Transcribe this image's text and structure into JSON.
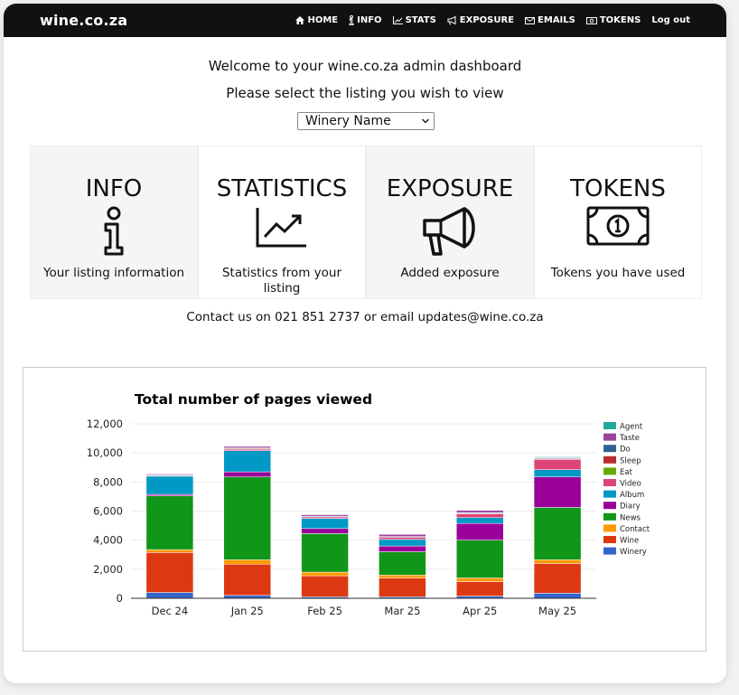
{
  "brand": "wine.co.za",
  "nav": [
    {
      "label": "HOME",
      "icon": "home-icon"
    },
    {
      "label": "INFO",
      "icon": "info-icon"
    },
    {
      "label": "STATS",
      "icon": "chart-icon"
    },
    {
      "label": "EXPOSURE",
      "icon": "megaphone-icon"
    },
    {
      "label": "EMAILS",
      "icon": "envelope-icon"
    },
    {
      "label": "TOKENS",
      "icon": "money-icon"
    },
    {
      "label": "Log out",
      "icon": ""
    }
  ],
  "welcome": "Welcome to your wine.co.za admin dashboard",
  "prompt": "Please select the listing you wish to view",
  "listing_select": {
    "selected": "Winery Name"
  },
  "tiles": [
    {
      "title": "INFO",
      "desc": "Your listing information",
      "icon": "info-icon"
    },
    {
      "title": "STATISTICS",
      "desc": "Statistics from your listing",
      "icon": "chart-line-icon"
    },
    {
      "title": "EXPOSURE",
      "desc": "Added exposure",
      "icon": "megaphone-icon"
    },
    {
      "title": "TOKENS",
      "desc": "Tokens you have used",
      "icon": "money-bill-icon"
    }
  ],
  "contact": "Contact us on 021 851 2737 or email updates@wine.co.za",
  "chart_data": {
    "type": "bar",
    "stacked": true,
    "title": "Total number of pages viewed",
    "xlabel": "",
    "ylabel": "",
    "ylim": [
      0,
      12000
    ],
    "yticks": [
      "0",
      "2,000",
      "4,000",
      "6,000",
      "8,000",
      "10,000",
      "12,000"
    ],
    "grid": true,
    "legend": "right",
    "categories": [
      "Dec 24",
      "Jan 25",
      "Feb 25",
      "Mar 25",
      "Apr 25",
      "May 25"
    ],
    "series": [
      {
        "name": "Winery",
        "color": "#3366cc",
        "values": [
          400,
          200,
          100,
          100,
          150,
          350
        ]
      },
      {
        "name": "Wine",
        "color": "#dc3912",
        "values": [
          2750,
          2150,
          1450,
          1300,
          1000,
          2050
        ]
      },
      {
        "name": "Contact",
        "color": "#ff9900",
        "values": [
          200,
          300,
          250,
          200,
          250,
          250
        ]
      },
      {
        "name": "News",
        "color": "#109618",
        "values": [
          3700,
          5700,
          2650,
          1600,
          2600,
          3600
        ]
      },
      {
        "name": "Diary",
        "color": "#990099",
        "values": [
          100,
          350,
          350,
          400,
          1150,
          2100
        ]
      },
      {
        "name": "Album",
        "color": "#0099c6",
        "values": [
          1250,
          1450,
          700,
          450,
          400,
          500
        ]
      },
      {
        "name": "Video",
        "color": "#dd4477",
        "values": [
          50,
          100,
          100,
          150,
          250,
          700
        ]
      },
      {
        "name": "Eat",
        "color": "#66aa00",
        "values": [
          0,
          0,
          0,
          0,
          0,
          0
        ]
      },
      {
        "name": "Sleep",
        "color": "#b82e2e",
        "values": [
          0,
          50,
          0,
          0,
          50,
          50
        ]
      },
      {
        "name": "Do",
        "color": "#316395",
        "values": [
          50,
          50,
          50,
          50,
          50,
          50
        ]
      },
      {
        "name": "Taste",
        "color": "#994499",
        "values": [
          50,
          100,
          100,
          150,
          150,
          50
        ]
      },
      {
        "name": "Agent",
        "color": "#22aa99",
        "values": [
          0,
          0,
          0,
          0,
          0,
          50
        ]
      }
    ]
  }
}
